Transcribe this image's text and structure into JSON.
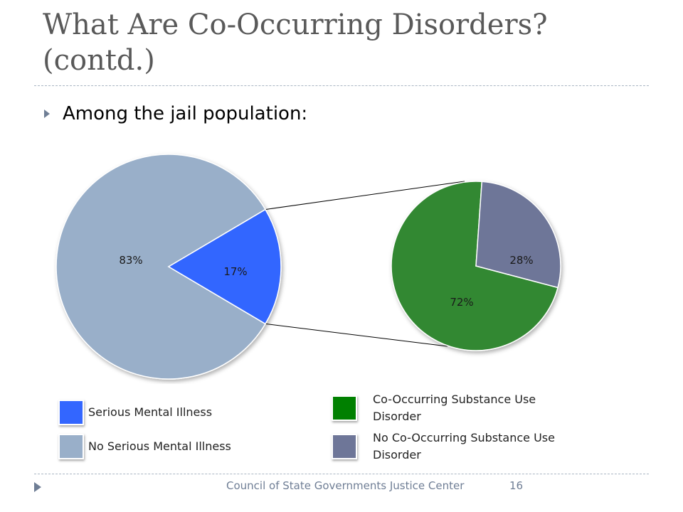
{
  "slide": {
    "title_line1": "What Are Co-Occurring Disorders?",
    "title_line2": "(contd.)",
    "bullet": "Among the jail population:",
    "footer": "Council of State Governments Justice Center",
    "page_number": "16"
  },
  "chart_data": {
    "type": "pie",
    "title": "",
    "charts": [
      {
        "name": "",
        "slices": [
          {
            "label": "No Serious Mental Illness",
            "value": 83,
            "display": "83%",
            "color": "#99afc9"
          },
          {
            "label": "Serious Mental Illness",
            "value": 17,
            "display": "17%",
            "color": "#3366ff"
          }
        ]
      },
      {
        "name": "",
        "slices": [
          {
            "label": "Co-Occurring Substance Use Disorder",
            "value": 72,
            "display": "72%",
            "color": "#338833"
          },
          {
            "label": "No Co-Occurring Substance Use Disorder",
            "value": 28,
            "display": "28%",
            "color": "#6e7698"
          }
        ]
      }
    ],
    "legend": [
      {
        "label": "Serious Mental Illness",
        "color": "#3366ff"
      },
      {
        "label": "No Serious Mental Illness",
        "color": "#99afc9"
      },
      {
        "label": "Co-Occurring Substance Use Disorder",
        "color": "#008000"
      },
      {
        "label": "No Co-Occurring Substance Use Disorder",
        "color": "#6e7698"
      }
    ],
    "legend_position": "bottom"
  }
}
